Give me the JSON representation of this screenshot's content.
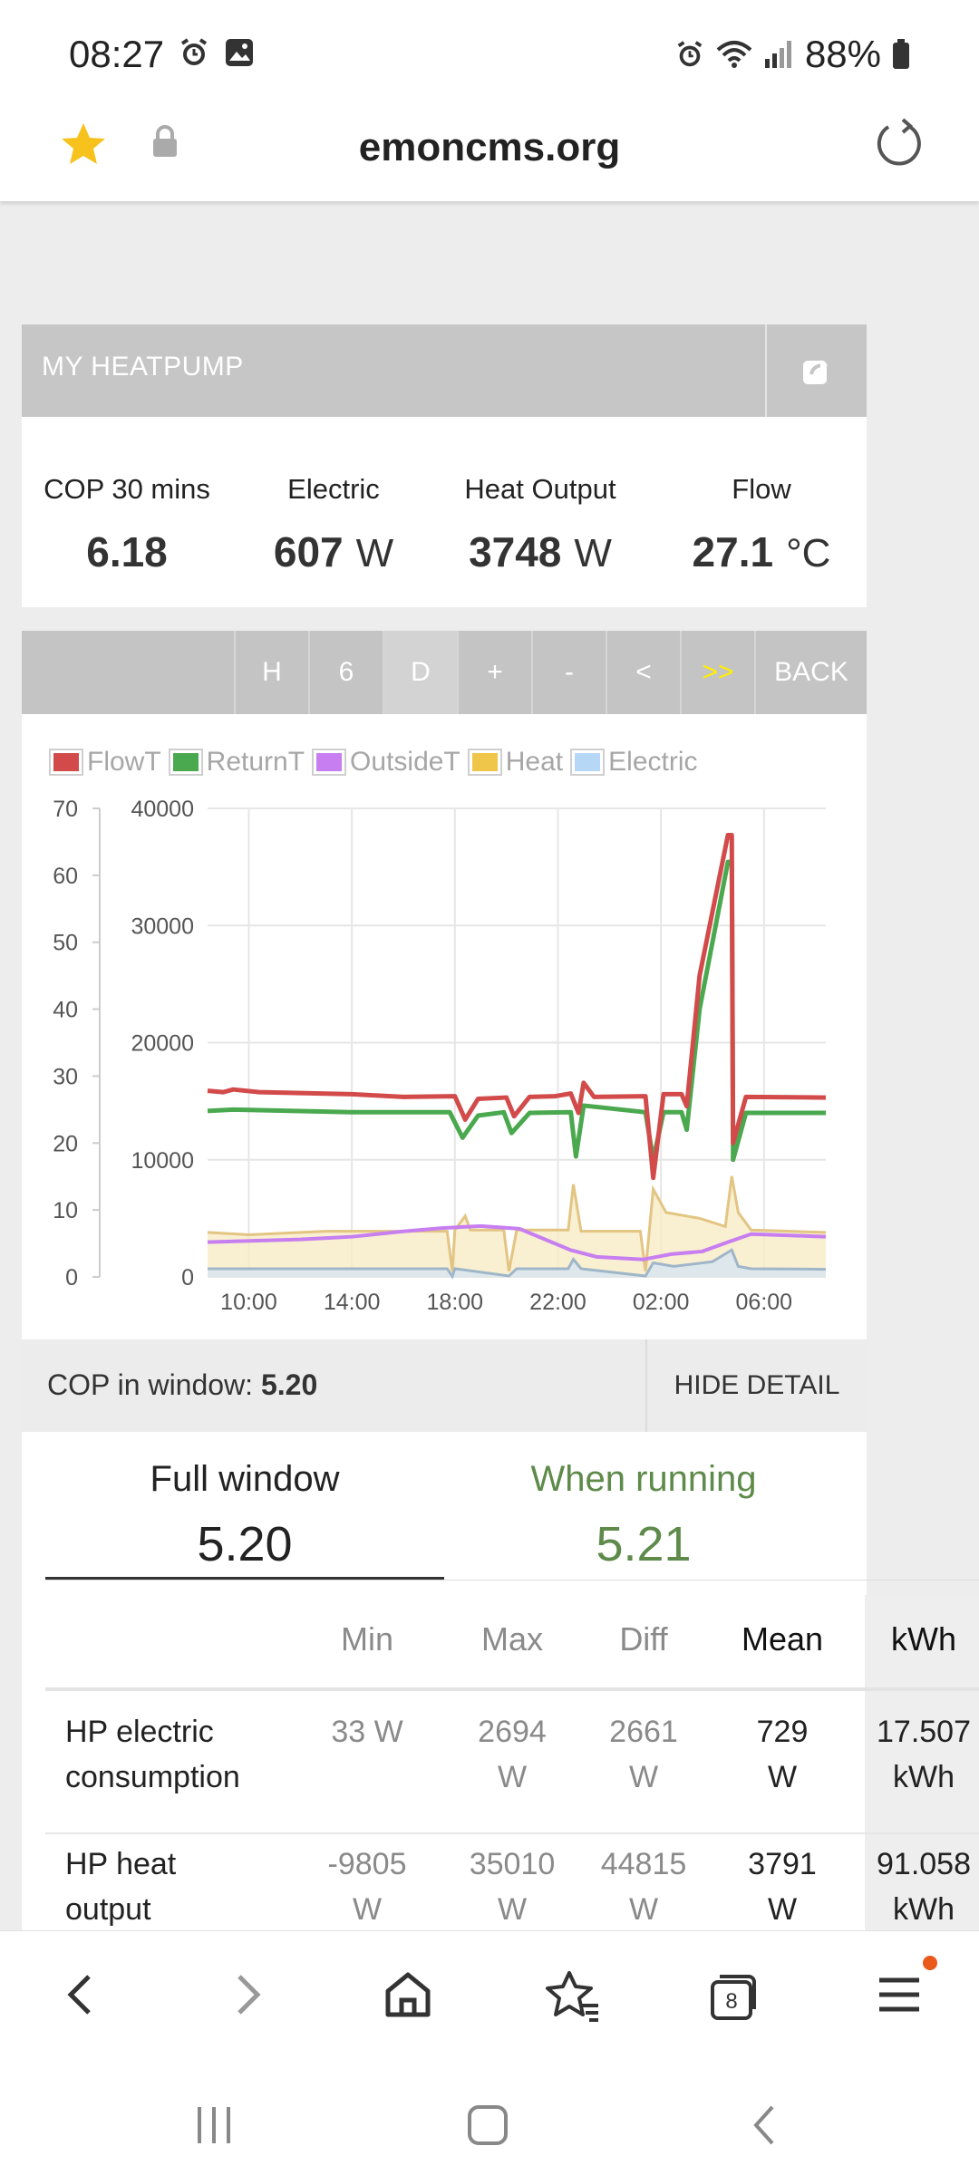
{
  "status_bar": {
    "time": "08:27",
    "battery": "88%",
    "icons": [
      "alarm-icon",
      "gallery-icon",
      "alarm-icon",
      "wifi-icon",
      "signal-icon",
      "battery-icon"
    ]
  },
  "browser": {
    "url": "emoncms.org"
  },
  "panel": {
    "title": "MY HEATPUMP",
    "stats": [
      {
        "label": "COP 30 mins",
        "value": "6.18",
        "unit": ""
      },
      {
        "label": "Electric",
        "value": "607",
        "unit": "W"
      },
      {
        "label": "Heat Output",
        "value": "3748",
        "unit": "W"
      },
      {
        "label": "Flow",
        "value": "27.1",
        "unit": "°C"
      }
    ]
  },
  "controls": {
    "buttons": [
      "H",
      "6",
      "D",
      "+",
      "-",
      "<",
      ">>",
      "BACK"
    ]
  },
  "chart_data": {
    "type": "line",
    "legend": [
      "FlowT",
      "ReturnT",
      "OutsideT",
      "Heat",
      "Electric"
    ],
    "legend_colors": [
      "#d24a4a",
      "#4aa84e",
      "#c77ef0",
      "#efc54a",
      "#b6d7f5"
    ],
    "y_left": {
      "ticks": [
        "0",
        "10",
        "20",
        "30",
        "40",
        "50",
        "60",
        "70"
      ],
      "range": [
        0,
        70
      ]
    },
    "y_right": {
      "ticks": [
        "0",
        "10000",
        "20000",
        "30000",
        "40000"
      ],
      "range": [
        0,
        40000
      ]
    },
    "x_ticks": [
      "10:00",
      "14:00",
      "18:00",
      "22:00",
      "02:00",
      "06:00"
    ],
    "x_tick_hours": [
      10,
      14,
      18,
      22,
      26,
      30
    ],
    "x_range_hours": [
      8.4,
      32.4
    ],
    "series": [
      {
        "name": "FlowT",
        "axis": "left",
        "points": [
          [
            8.4,
            27.8
          ],
          [
            9.0,
            27.6
          ],
          [
            9.4,
            28.0
          ],
          [
            10.4,
            27.6
          ],
          [
            14.0,
            27.3
          ],
          [
            16.0,
            26.9
          ],
          [
            18.0,
            27.0
          ],
          [
            18.4,
            23.5
          ],
          [
            18.9,
            26.6
          ],
          [
            20.0,
            26.8
          ],
          [
            20.3,
            24.0
          ],
          [
            20.9,
            26.9
          ],
          [
            21.9,
            27.0
          ],
          [
            22.5,
            27.4
          ],
          [
            22.8,
            24.5
          ],
          [
            23.0,
            29.0
          ],
          [
            23.4,
            26.9
          ],
          [
            25.4,
            27.0
          ],
          [
            25.7,
            14.8
          ],
          [
            26.1,
            27.3
          ],
          [
            26.8,
            27.3
          ],
          [
            27.0,
            25.5
          ],
          [
            27.5,
            45.0
          ],
          [
            28.6,
            66.0
          ],
          [
            28.75,
            66.0
          ],
          [
            28.8,
            20.0
          ],
          [
            29.3,
            26.9
          ],
          [
            32.4,
            26.8
          ]
        ]
      },
      {
        "name": "ReturnT",
        "axis": "left",
        "points": [
          [
            8.4,
            24.8
          ],
          [
            9.4,
            25.0
          ],
          [
            14.0,
            24.6
          ],
          [
            17.8,
            24.6
          ],
          [
            18.3,
            20.8
          ],
          [
            18.9,
            24.1
          ],
          [
            19.9,
            24.6
          ],
          [
            20.2,
            21.5
          ],
          [
            20.9,
            24.5
          ],
          [
            22.5,
            24.6
          ],
          [
            22.7,
            18.0
          ],
          [
            23.0,
            25.6
          ],
          [
            25.4,
            24.6
          ],
          [
            25.7,
            17.5
          ],
          [
            26.1,
            24.6
          ],
          [
            26.8,
            24.6
          ],
          [
            27.0,
            22.0
          ],
          [
            27.5,
            40.0
          ],
          [
            28.6,
            62.0
          ],
          [
            28.75,
            62.0
          ],
          [
            28.8,
            17.5
          ],
          [
            29.3,
            24.5
          ],
          [
            32.4,
            24.5
          ]
        ]
      },
      {
        "name": "OutsideT",
        "axis": "left",
        "points": [
          [
            8.4,
            5.2
          ],
          [
            12.0,
            5.6
          ],
          [
            14.0,
            6.0
          ],
          [
            16.0,
            6.8
          ],
          [
            17.5,
            7.3
          ],
          [
            19.0,
            7.6
          ],
          [
            20.5,
            7.2
          ],
          [
            21.5,
            5.6
          ],
          [
            22.5,
            4.0
          ],
          [
            23.5,
            3.0
          ],
          [
            25.3,
            2.6
          ],
          [
            26.4,
            3.4
          ],
          [
            27.6,
            3.8
          ],
          [
            28.6,
            5.2
          ],
          [
            29.5,
            6.4
          ],
          [
            31.0,
            6.2
          ],
          [
            32.4,
            6.0
          ]
        ]
      },
      {
        "name": "Heat",
        "axis": "right",
        "points": [
          [
            8.4,
            3800
          ],
          [
            10.0,
            3600
          ],
          [
            13.0,
            3900
          ],
          [
            17.7,
            3900
          ],
          [
            17.9,
            500
          ],
          [
            18.0,
            4000
          ],
          [
            18.4,
            5200
          ],
          [
            18.6,
            4000
          ],
          [
            19.9,
            4000
          ],
          [
            20.1,
            500
          ],
          [
            20.4,
            4000
          ],
          [
            22.4,
            4000
          ],
          [
            22.6,
            7900
          ],
          [
            22.9,
            3900
          ],
          [
            25.2,
            3900
          ],
          [
            25.4,
            500
          ],
          [
            25.7,
            7500
          ],
          [
            26.2,
            5500
          ],
          [
            27.5,
            5000
          ],
          [
            28.5,
            4300
          ],
          [
            28.75,
            8600
          ],
          [
            29.0,
            5500
          ],
          [
            29.5,
            4000
          ],
          [
            32.4,
            3800
          ]
        ]
      },
      {
        "name": "Electric",
        "axis": "right",
        "points": [
          [
            8.4,
            700
          ],
          [
            13.0,
            700
          ],
          [
            17.7,
            700
          ],
          [
            17.9,
            50
          ],
          [
            18.0,
            700
          ],
          [
            20.1,
            80
          ],
          [
            20.4,
            700
          ],
          [
            22.4,
            700
          ],
          [
            22.6,
            1500
          ],
          [
            22.9,
            700
          ],
          [
            25.4,
            80
          ],
          [
            25.7,
            1200
          ],
          [
            26.5,
            900
          ],
          [
            28.0,
            1300
          ],
          [
            28.75,
            2300
          ],
          [
            29.0,
            900
          ],
          [
            29.5,
            700
          ],
          [
            32.4,
            650
          ]
        ]
      }
    ]
  },
  "cop": {
    "label": "COP in window:",
    "value": "5.20",
    "hide_label": "HIDE DETAIL"
  },
  "detail": {
    "tabs": [
      {
        "label": "Full window",
        "value": "5.20",
        "color": "#222222"
      },
      {
        "label": "When running",
        "value": "5.21",
        "color": "#5e8a4a"
      }
    ],
    "columns": [
      "Min",
      "Max",
      "Diff",
      "Mean",
      "kWh"
    ],
    "rows": [
      {
        "name": [
          "HP electric",
          "consumption"
        ],
        "min": [
          "33 W",
          ""
        ],
        "max": [
          "2694",
          "W"
        ],
        "diff": [
          "2661",
          "W"
        ],
        "mean": [
          "729",
          "W"
        ],
        "kwh": [
          "17.507",
          "kWh"
        ]
      },
      {
        "name": [
          "HP heat",
          "output"
        ],
        "min": [
          "-9805",
          "W"
        ],
        "max": [
          "35010",
          "W"
        ],
        "diff": [
          "44815",
          "W"
        ],
        "mean": [
          "3791",
          "W"
        ],
        "kwh": [
          "91.058",
          "kWh"
        ]
      }
    ]
  },
  "nav": {
    "icons": [
      "back-icon",
      "forward-icon",
      "home-icon",
      "bookmarks-icon",
      "tabs-icon",
      "menu-icon"
    ],
    "tabs_count": "8"
  }
}
